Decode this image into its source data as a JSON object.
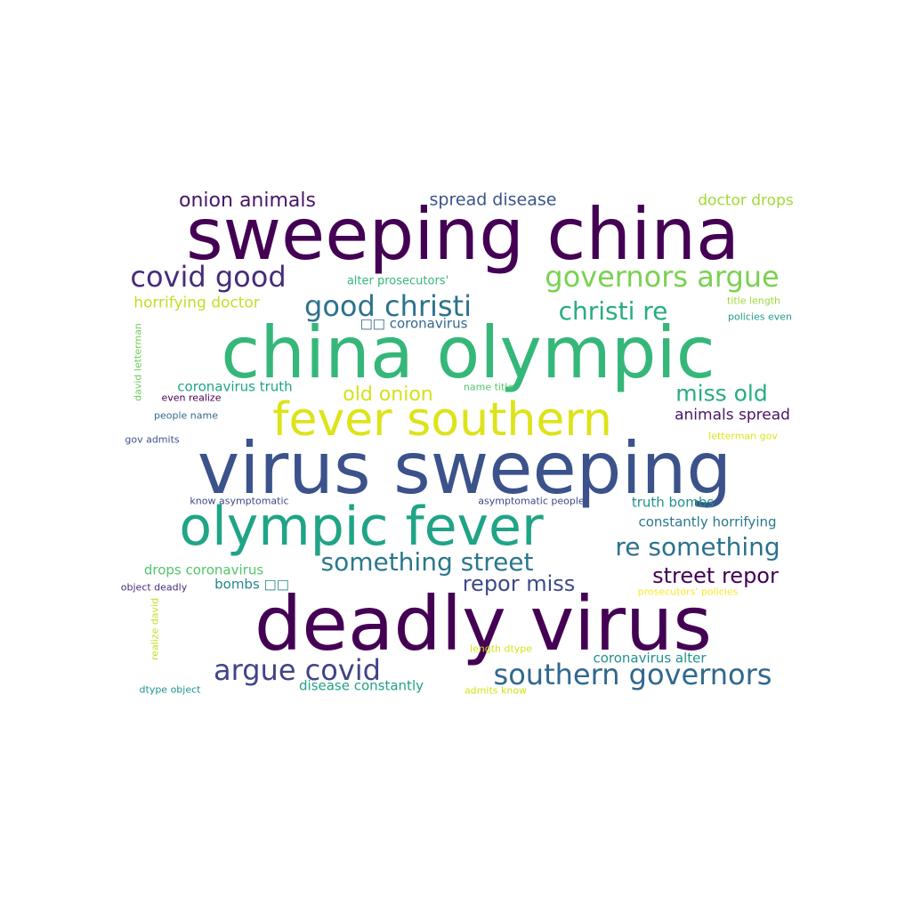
{
  "words": [
    {
      "text": "sweeping china",
      "color": "#440154"
    },
    {
      "text": "china olympic",
      "color": "#35b779"
    },
    {
      "text": "virus sweeping",
      "color": "#3b528b"
    },
    {
      "text": "deadly virus",
      "color": "#440154"
    },
    {
      "text": "fever southern",
      "color": "#dde318"
    },
    {
      "text": "olympic fever",
      "color": "#20a486"
    },
    {
      "text": "covid good",
      "color": "#472c7a"
    },
    {
      "text": "governors argue",
      "color": "#7ad151"
    },
    {
      "text": "good christi",
      "color": "#2c728e"
    },
    {
      "text": "christi re",
      "color": "#27ad81"
    },
    {
      "text": "onion animals",
      "color": "#481668"
    },
    {
      "text": "spread disease",
      "color": "#3b528b"
    },
    {
      "text": "doctor drops",
      "color": "#a0da39"
    },
    {
      "text": "horrifying doctor",
      "color": "#c2df23"
    },
    {
      "text": "alter prosecutors'",
      "color": "#35b779"
    },
    {
      "text": "title length",
      "color": "#a0da39"
    },
    {
      "text": "policies even",
      "color": "#1f9e89"
    },
    {
      "text": "□□ coronavirus",
      "color": "#31688e"
    },
    {
      "text": "coronavirus truth",
      "color": "#20a486"
    },
    {
      "text": "old onion",
      "color": "#d2e21b"
    },
    {
      "text": "miss old",
      "color": "#27ad81"
    },
    {
      "text": "name title",
      "color": "#52c569"
    },
    {
      "text": "even realize",
      "color": "#440154"
    },
    {
      "text": "people name",
      "color": "#31688e"
    },
    {
      "text": "animals spread",
      "color": "#481668"
    },
    {
      "text": "gov admits",
      "color": "#3b528b"
    },
    {
      "text": "letterman gov",
      "color": "#dde318"
    },
    {
      "text": "david letterman",
      "color": "#6ece58"
    },
    {
      "text": "know asymptomatic",
      "color": "#3e4989"
    },
    {
      "text": "asymptomatic people",
      "color": "#3e4989"
    },
    {
      "text": "truth bombs",
      "color": "#21918c"
    },
    {
      "text": "constantly horrifying",
      "color": "#2a788e"
    },
    {
      "text": "re something",
      "color": "#2c728e"
    },
    {
      "text": "something street",
      "color": "#2a788e"
    },
    {
      "text": "drops coronavirus",
      "color": "#52c569"
    },
    {
      "text": "street repor",
      "color": "#440154"
    },
    {
      "text": "repor miss",
      "color": "#3e4989"
    },
    {
      "text": "bombs □□",
      "color": "#25848e"
    },
    {
      "text": "object deadly",
      "color": "#472c7a"
    },
    {
      "text": "prosecutors' policies",
      "color": "#fde725"
    },
    {
      "text": "realize david",
      "color": "#c2df23"
    },
    {
      "text": "argue covid",
      "color": "#414487"
    },
    {
      "text": "southern governors",
      "color": "#31688e"
    },
    {
      "text": "length dtype",
      "color": "#d2e21b"
    },
    {
      "text": "coronavirus alter",
      "color": "#21918c"
    },
    {
      "text": "disease constantly",
      "color": "#1fa187"
    },
    {
      "text": "dtype object",
      "color": "#21918c"
    },
    {
      "text": "admits know",
      "color": "#d2e21b"
    }
  ]
}
